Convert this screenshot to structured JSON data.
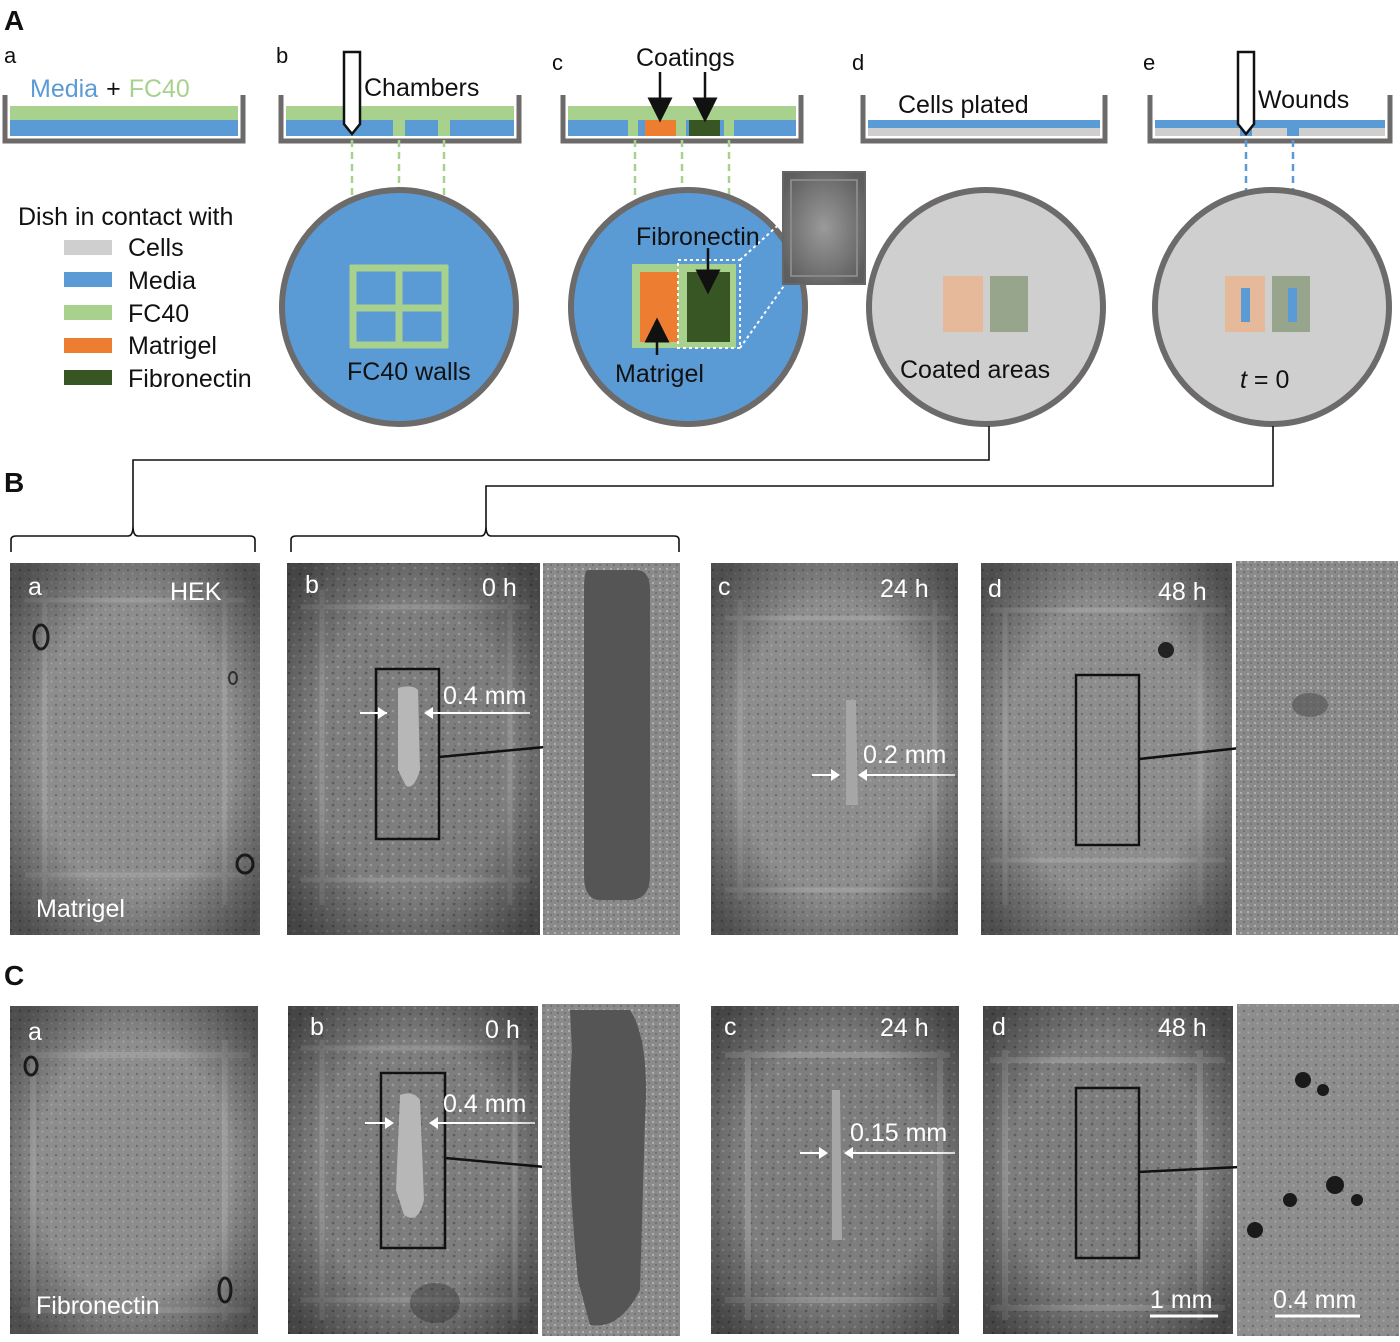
{
  "colors": {
    "cells": "#cfcfcf",
    "media": "#5b9bd5",
    "fc40": "#a9d18e",
    "matrigel": "#ed7d31",
    "fibronectin": "#375623",
    "dish": "#6d6a6a",
    "coated_matrigel": "#e6b99a",
    "coated_fibronectin": "#98a58d"
  },
  "icons": [
    "pipette-tip-icon",
    "petri-dish-icon",
    "arrow-icon",
    "bracket-connector"
  ],
  "panel_A": {
    "label": "A",
    "steps": [
      {
        "letter": "a",
        "media_word": "Media",
        "plus": "+",
        "fc40_word": "FC40"
      },
      {
        "letter": "b",
        "title": "Chambers",
        "circle_label": "FC40 walls"
      },
      {
        "letter": "c",
        "title": "Coatings",
        "circle_label_top": "Fibronectin",
        "circle_label_bottom": "Matrigel"
      },
      {
        "letter": "d",
        "title": "Cells plated",
        "circle_label": "Coated areas"
      },
      {
        "letter": "e",
        "title": "Wounds",
        "time_var": "t",
        "time_rest": " = 0"
      }
    ],
    "legend": {
      "title": "Dish in contact with",
      "items": [
        "Cells",
        "Media",
        "FC40",
        "Matrigel",
        "Fibronectin"
      ]
    }
  },
  "panel_B": {
    "label": "B",
    "images": [
      {
        "letter": "a",
        "corner": "HEK",
        "bottom": "Matrigel"
      },
      {
        "letter": "b",
        "time": "0 h",
        "measure": "0.4 mm"
      },
      {
        "letter": "c",
        "time": "24 h",
        "measure": "0.2 mm"
      },
      {
        "letter": "d",
        "time": "48 h"
      }
    ]
  },
  "panel_C": {
    "label": "C",
    "images": [
      {
        "letter": "a",
        "bottom": "Fibronectin"
      },
      {
        "letter": "b",
        "time": "0 h",
        "measure": "0.4 mm"
      },
      {
        "letter": "c",
        "time": "24 h",
        "measure": "0.15 mm"
      },
      {
        "letter": "d",
        "time": "48 h",
        "scale": "1 mm"
      }
    ],
    "inset_scale": "0.4 mm"
  }
}
